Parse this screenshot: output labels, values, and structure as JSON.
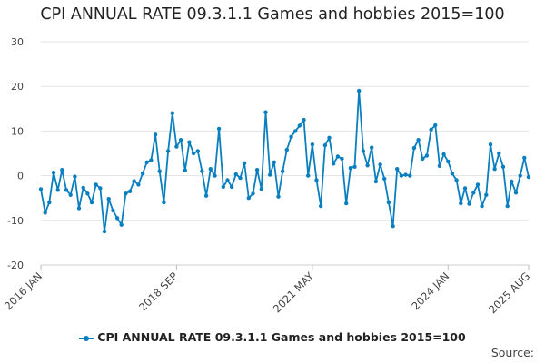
{
  "chart_data": {
    "type": "line",
    "title": "CPI ANNUAL RATE 09.3.1.1 Games and hobbies 2015=100",
    "xlabel": "",
    "ylabel": "",
    "ylim": [
      -20,
      30
    ],
    "yticks": [
      30,
      20,
      10,
      0,
      -10,
      -20
    ],
    "grid": true,
    "x_start": "2016 JAN",
    "x_end": "2025 AUG",
    "xtick_labels": [
      {
        "label": "2016 JAN",
        "index": 0
      },
      {
        "label": "2018 SEP",
        "index": 32
      },
      {
        "label": "2021 MAY",
        "index": 64
      },
      {
        "label": "2024 JAN",
        "index": 96
      },
      {
        "label": "2025 AUG",
        "index": 115
      }
    ],
    "series": [
      {
        "name": "CPI ANNUAL RATE 09.3.1.1 Games and hobbies 2015=100",
        "color": "#0a7fbf",
        "values": [
          -3.0,
          -8.3,
          -6.0,
          0.7,
          -3.2,
          1.3,
          -3.2,
          -4.3,
          -0.2,
          -7.3,
          -2.7,
          -4.0,
          -6.0,
          -2.0,
          -2.8,
          -12.5,
          -5.2,
          -7.8,
          -9.5,
          -11.0,
          -4.0,
          -3.5,
          -1.2,
          -2.0,
          0.5,
          3.0,
          3.5,
          9.2,
          1.0,
          -6.0,
          5.5,
          14.0,
          6.5,
          8.0,
          1.2,
          7.5,
          5.0,
          5.5,
          1.0,
          -4.5,
          1.5,
          0.0,
          10.5,
          -2.5,
          -1.0,
          -2.5,
          0.3,
          -0.5,
          2.8,
          -5.0,
          -4.0,
          1.3,
          -3.0,
          14.2,
          0.2,
          3.0,
          -4.7,
          1.0,
          5.8,
          8.7,
          10.0,
          11.2,
          12.5,
          0.0,
          7.0,
          -1.0,
          -6.8,
          6.8,
          8.5,
          2.7,
          4.3,
          3.8,
          -6.2,
          1.7,
          2.0,
          19.0,
          5.5,
          2.3,
          6.3,
          -1.3,
          2.5,
          -0.7,
          -6.0,
          -11.3,
          1.5,
          0.0,
          0.2,
          0.0,
          6.2,
          8.0,
          3.8,
          4.5,
          10.3,
          11.3,
          2.2,
          4.8,
          3.2,
          0.5,
          -1.0,
          -6.2,
          -2.8,
          -6.3,
          -3.8,
          -2.0,
          -6.8,
          -4.3,
          7.0,
          1.5,
          5.0,
          2.0,
          -6.8,
          -1.3,
          -3.8,
          0.0,
          4.0,
          -0.3
        ]
      }
    ]
  },
  "legend": {
    "label": "CPI ANNUAL RATE 09.3.1.1 Games and hobbies 2015=100"
  },
  "source": {
    "label": "Source:"
  }
}
